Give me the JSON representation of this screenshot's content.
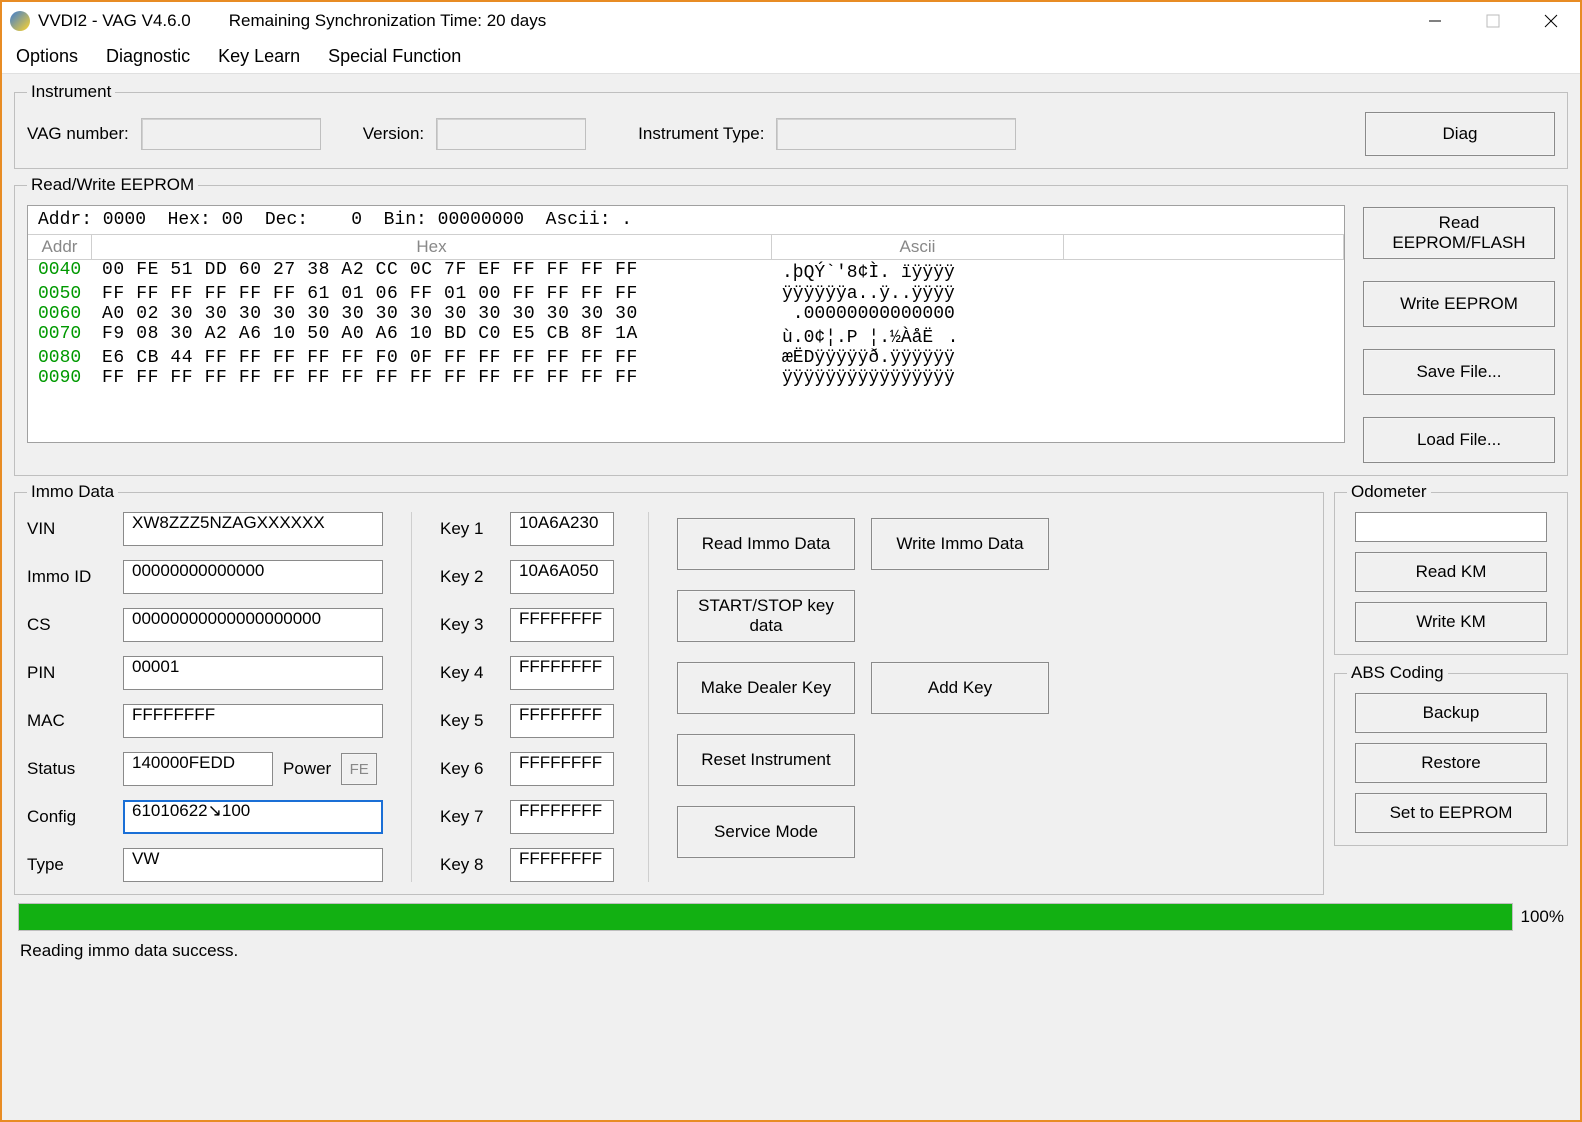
{
  "titlebar": {
    "app": "VVDI2 - VAG V4.6.0",
    "sync": "Remaining Synchronization Time: 20 days"
  },
  "menu": {
    "options": "Options",
    "diagnostic": "Diagnostic",
    "keylearn": "Key Learn",
    "special": "Special Function"
  },
  "instrument": {
    "legend": "Instrument",
    "vag_lbl": "VAG number:",
    "vag_val": "",
    "ver_lbl": "Version:",
    "ver_val": "",
    "type_lbl": "Instrument Type:",
    "type_val": "",
    "diag_btn": "Diag"
  },
  "eeprom": {
    "legend": "Read/Write EEPROM",
    "header": "Addr: 0000  Hex: 00  Dec:    0  Bin: 00000000  Ascii: .",
    "col_addr": "Addr",
    "col_hex": "Hex",
    "col_ascii": "Ascii",
    "rows": [
      {
        "addr": "0040",
        "hex": "00 FE 51 DD 60 27 38 A2 CC 0C 7F EF FF FF FF FF",
        "ascii": ".þQÝ`'8¢Ì. ïÿÿÿÿ"
      },
      {
        "addr": "0050",
        "hex": "FF FF FF FF FF FF 61 01 06 FF 01 00 FF FF FF FF",
        "ascii": "ÿÿÿÿÿÿa..ÿ..ÿÿÿÿ"
      },
      {
        "addr": "0060",
        "hex": "A0 02 30 30 30 30 30 30 30 30 30 30 30 30 30 30",
        "ascii": " .00000000000000"
      },
      {
        "addr": "0070",
        "hex": "F9 08 30 A2 A6 10 50 A0 A6 10 BD C0 E5 CB 8F 1A",
        "ascii": "ù.0¢¦.P ¦.½ÀåË."
      },
      {
        "addr": "0080",
        "hex": "E6 CB 44 FF FF FF FF FF F0 0F FF FF FF FF FF FF",
        "ascii": "æËDÿÿÿÿÿð.ÿÿÿÿÿÿ"
      },
      {
        "addr": "0090",
        "hex": "FF FF FF FF FF FF FF FF FF FF FF FF FF FF FF FF",
        "ascii": "ÿÿÿÿÿÿÿÿÿÿÿÿÿÿÿÿ"
      }
    ],
    "btn_read": "Read EEPROM/FLASH",
    "btn_write": "Write EEPROM",
    "btn_save": "Save File...",
    "btn_load": "Load File..."
  },
  "immo": {
    "legend": "Immo Data",
    "lbl_vin": "VIN",
    "vin": "XW8ZZZ5NZAGXXXXXX",
    "lbl_immoid": "Immo ID",
    "immoid": "00000000000000",
    "lbl_cs": "CS",
    "cs": "00000000000000000000",
    "lbl_pin": "PIN",
    "pin": "00001",
    "lbl_mac": "MAC",
    "mac": "FFFFFFFF",
    "lbl_status": "Status",
    "status": "140000FEDD",
    "power_lbl": "Power",
    "power": "FE",
    "lbl_config": "Config",
    "config": "61010622↘100",
    "lbl_type": "Type",
    "type": "VW",
    "keylbl": [
      "Key 1",
      "Key 2",
      "Key 3",
      "Key 4",
      "Key 5",
      "Key 6",
      "Key 7",
      "Key 8"
    ],
    "keys": [
      "10A6A230",
      "10A6A050",
      "FFFFFFFF",
      "FFFFFFFF",
      "FFFFFFFF",
      "FFFFFFFF",
      "FFFFFFFF",
      "FFFFFFFF"
    ],
    "btn_read": "Read Immo Data",
    "btn_write": "Write Immo Data",
    "btn_ss": "START/STOP key data",
    "btn_dealer": "Make Dealer Key",
    "btn_addkey": "Add Key",
    "btn_reset": "Reset Instrument",
    "btn_service": "Service Mode"
  },
  "odom": {
    "legend": "Odometer",
    "km": "",
    "btn_read": "Read KM",
    "btn_write": "Write KM"
  },
  "abs": {
    "legend": "ABS Coding",
    "btn_backup": "Backup",
    "btn_restore": "Restore",
    "btn_set": "Set to EEPROM"
  },
  "progress": {
    "pct": 100,
    "label": "100%"
  },
  "status": "Reading immo data success."
}
